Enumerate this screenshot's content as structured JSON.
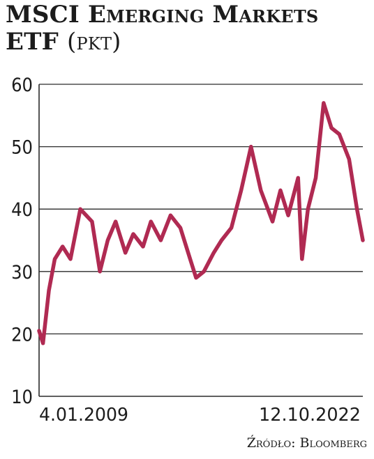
{
  "title": "MSCI Emerging Markets",
  "title_line2": "ETF",
  "unit": "(pkt)",
  "source": "Źródło: Bloomberg",
  "colors": {
    "line": "#b02a52",
    "grid": "#2a2a2a",
    "text": "#1c1c1c"
  },
  "chart_data": {
    "type": "line",
    "ylim": [
      10,
      60
    ],
    "yticks": [
      10,
      20,
      30,
      40,
      50,
      60
    ],
    "grid": "horizontal",
    "x_tick_labels": [
      "4.01.2009",
      "12.10.2022"
    ],
    "x": [
      "2009-01",
      "2009-03",
      "2009-06",
      "2009-09",
      "2010-01",
      "2010-05",
      "2010-10",
      "2011-04",
      "2011-08",
      "2011-12",
      "2012-04",
      "2012-09",
      "2013-01",
      "2013-06",
      "2013-10",
      "2014-03",
      "2014-08",
      "2015-01",
      "2015-06",
      "2015-09",
      "2016-01",
      "2016-06",
      "2016-10",
      "2017-03",
      "2017-08",
      "2018-01",
      "2018-06",
      "2018-12",
      "2019-04",
      "2019-08",
      "2020-01",
      "2020-03",
      "2020-06",
      "2020-10",
      "2021-02",
      "2021-06",
      "2021-10",
      "2022-03",
      "2022-07",
      "2022-10"
    ],
    "values": [
      20.5,
      18.5,
      27,
      32,
      34,
      32,
      40,
      38,
      30,
      35,
      38,
      33,
      36,
      34,
      38,
      35,
      39,
      37,
      32,
      29,
      30,
      33,
      35,
      37,
      43,
      50,
      43,
      38,
      43,
      39,
      45,
      32,
      40,
      45,
      57,
      53,
      52,
      48,
      40,
      35
    ]
  }
}
